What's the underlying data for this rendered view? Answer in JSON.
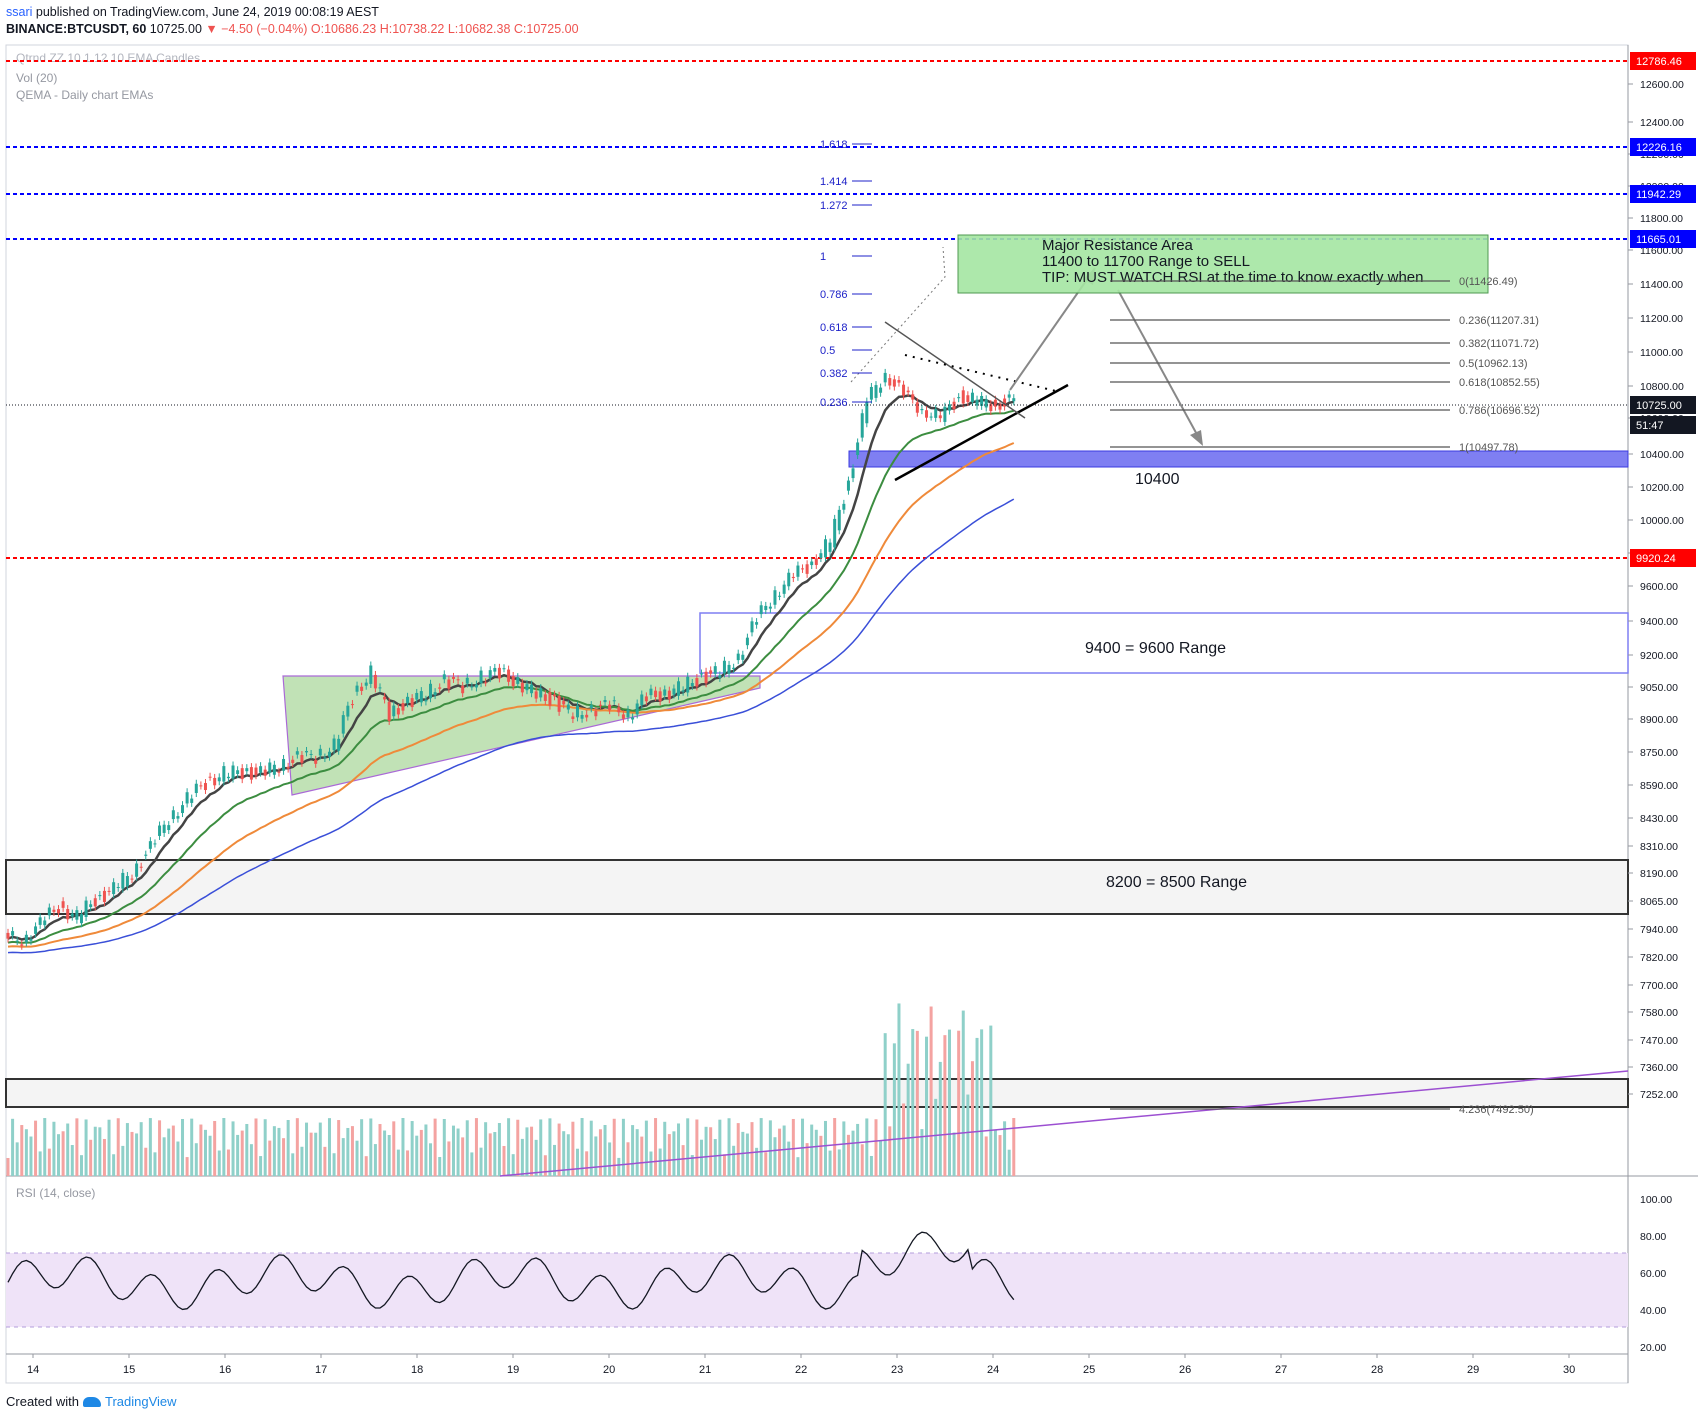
{
  "header": {
    "line1_user": "ssari",
    "line1_rest": " published on TradingView.com, June 24, 2019 00:08:19 AEST",
    "symbol": "BINANCE:BTCUSDT, 60",
    "last": "10725.00",
    "change": "▼ −4.50 (−0.04%)",
    "o": "O:10686.23",
    "h": "H:10738.22",
    "l": "L:10682.38",
    "c": "C:10725.00"
  },
  "legend": {
    "vol": "Vol (20)",
    "qema": "QEMA - Daily chart EMAs",
    "rsi": "RSI (14, close)"
  },
  "footer": {
    "created": "Created with",
    "brand": "TradingView"
  },
  "colors": {
    "up": "#26a69a",
    "down": "#ef5350",
    "red_level": "#ff0000",
    "blue_level": "#0000ff",
    "ema_black": "#444444",
    "ema_green": "#3c8d40",
    "ema_orange": "#ef8a3a",
    "ema_blue": "#3a4fd8",
    "rsi_band": "#efe3f8",
    "resistance_box": "#a5e6a2",
    "support_box": "#7f7ff2"
  },
  "chart_data": {
    "type": "candlestick",
    "symbol": "BINANCE:BTCUSDT",
    "interval": "60",
    "price_axis": {
      "ticks": [
        "12600.00",
        "12400.00",
        "12200.00",
        "12000.00",
        "11800.00",
        "11600.00",
        "11400.00",
        "11200.00",
        "11000.00",
        "10800.00",
        "10600.00",
        "10400.00",
        "10200.00",
        "10000.00",
        "9800.00",
        "9600.00",
        "9400.00",
        "9200.00",
        "9050.00",
        "8900.00",
        "8750.00",
        "8590.00",
        "8430.00",
        "8310.00",
        "8190.00",
        "8065.00",
        "7940.00",
        "7820.00",
        "7700.00",
        "7580.00",
        "7470.00",
        "7360.00",
        "7252.00"
      ],
      "log_scale": true
    },
    "x_axis": {
      "ticks": [
        "14",
        "15",
        "16",
        "17",
        "18",
        "19",
        "20",
        "21",
        "22",
        "23",
        "24",
        "25",
        "26",
        "27",
        "28",
        "29",
        "30"
      ]
    },
    "price_tags": [
      {
        "value": "12786.46",
        "color": "#ff0000"
      },
      {
        "value": "12226.16",
        "color": "#0000ff"
      },
      {
        "value": "11942.29",
        "color": "#0000ff"
      },
      {
        "value": "11665.01",
        "color": "#0000ff"
      },
      {
        "value": "10725.00",
        "color": "#131722"
      },
      {
        "value": "51:47",
        "color": "#131722"
      },
      {
        "value": "9920.24",
        "color": "#ff0000"
      }
    ],
    "horizontal_levels": [
      {
        "price": 12786.46,
        "style": "dashed",
        "color": "red"
      },
      {
        "price": 12226.16,
        "style": "dashed",
        "color": "blue"
      },
      {
        "price": 11942.29,
        "style": "dashed",
        "color": "blue"
      },
      {
        "price": 11665.01,
        "style": "dashed",
        "color": "blue"
      },
      {
        "price": 9920.24,
        "style": "dashed",
        "color": "red"
      }
    ],
    "fib_extension_labels": [
      "1.618",
      "1.414",
      "1.272",
      "1",
      "0.786",
      "0.618",
      "0.5",
      "0.382",
      "0.236"
    ],
    "fib_retracement": [
      {
        "label": "0(11426.49)"
      },
      {
        "label": "0.236(11207.31)"
      },
      {
        "label": "0.382(11071.72)"
      },
      {
        "label": "0.5(10962.13)"
      },
      {
        "label": "0.618(10852.55)"
      },
      {
        "label": "0.786(10696.52)"
      },
      {
        "label": "1(10497.78)"
      },
      {
        "label": "4.236(7492.50)"
      }
    ],
    "annotations": {
      "resistance": [
        "Major Resistance Area",
        "11400 to 11700 Range to SELL",
        "TIP: MUST WATCH RSI at the time to know exactly when"
      ],
      "support_label": "10400",
      "range_9400": "9400 = 9600 Range",
      "range_8200": "8200 = 8500 Range"
    },
    "rsi": {
      "ticks": [
        "100.00",
        "80.00",
        "60.00",
        "40.00",
        "20.00"
      ],
      "band": [
        30,
        70
      ]
    },
    "series_close": [
      8090,
      8150,
      8230,
      8180,
      8260,
      8300,
      8380,
      8480,
      8620,
      8700,
      8780,
      8820,
      8830,
      8820,
      8860,
      8890,
      8900,
      8950,
      9180,
      9300,
      9100,
      9150,
      9200,
      9260,
      9230,
      9280,
      9300,
      9250,
      9200,
      9160,
      9100,
      9120,
      9140,
      9100,
      9180,
      9200,
      9230,
      9280,
      9300,
      9380,
      9560,
      9700,
      9780,
      9850,
      9960,
      10280,
      10720,
      10880,
      10750,
      10680,
      10620,
      10750,
      10720,
      10700,
      10725
    ]
  }
}
